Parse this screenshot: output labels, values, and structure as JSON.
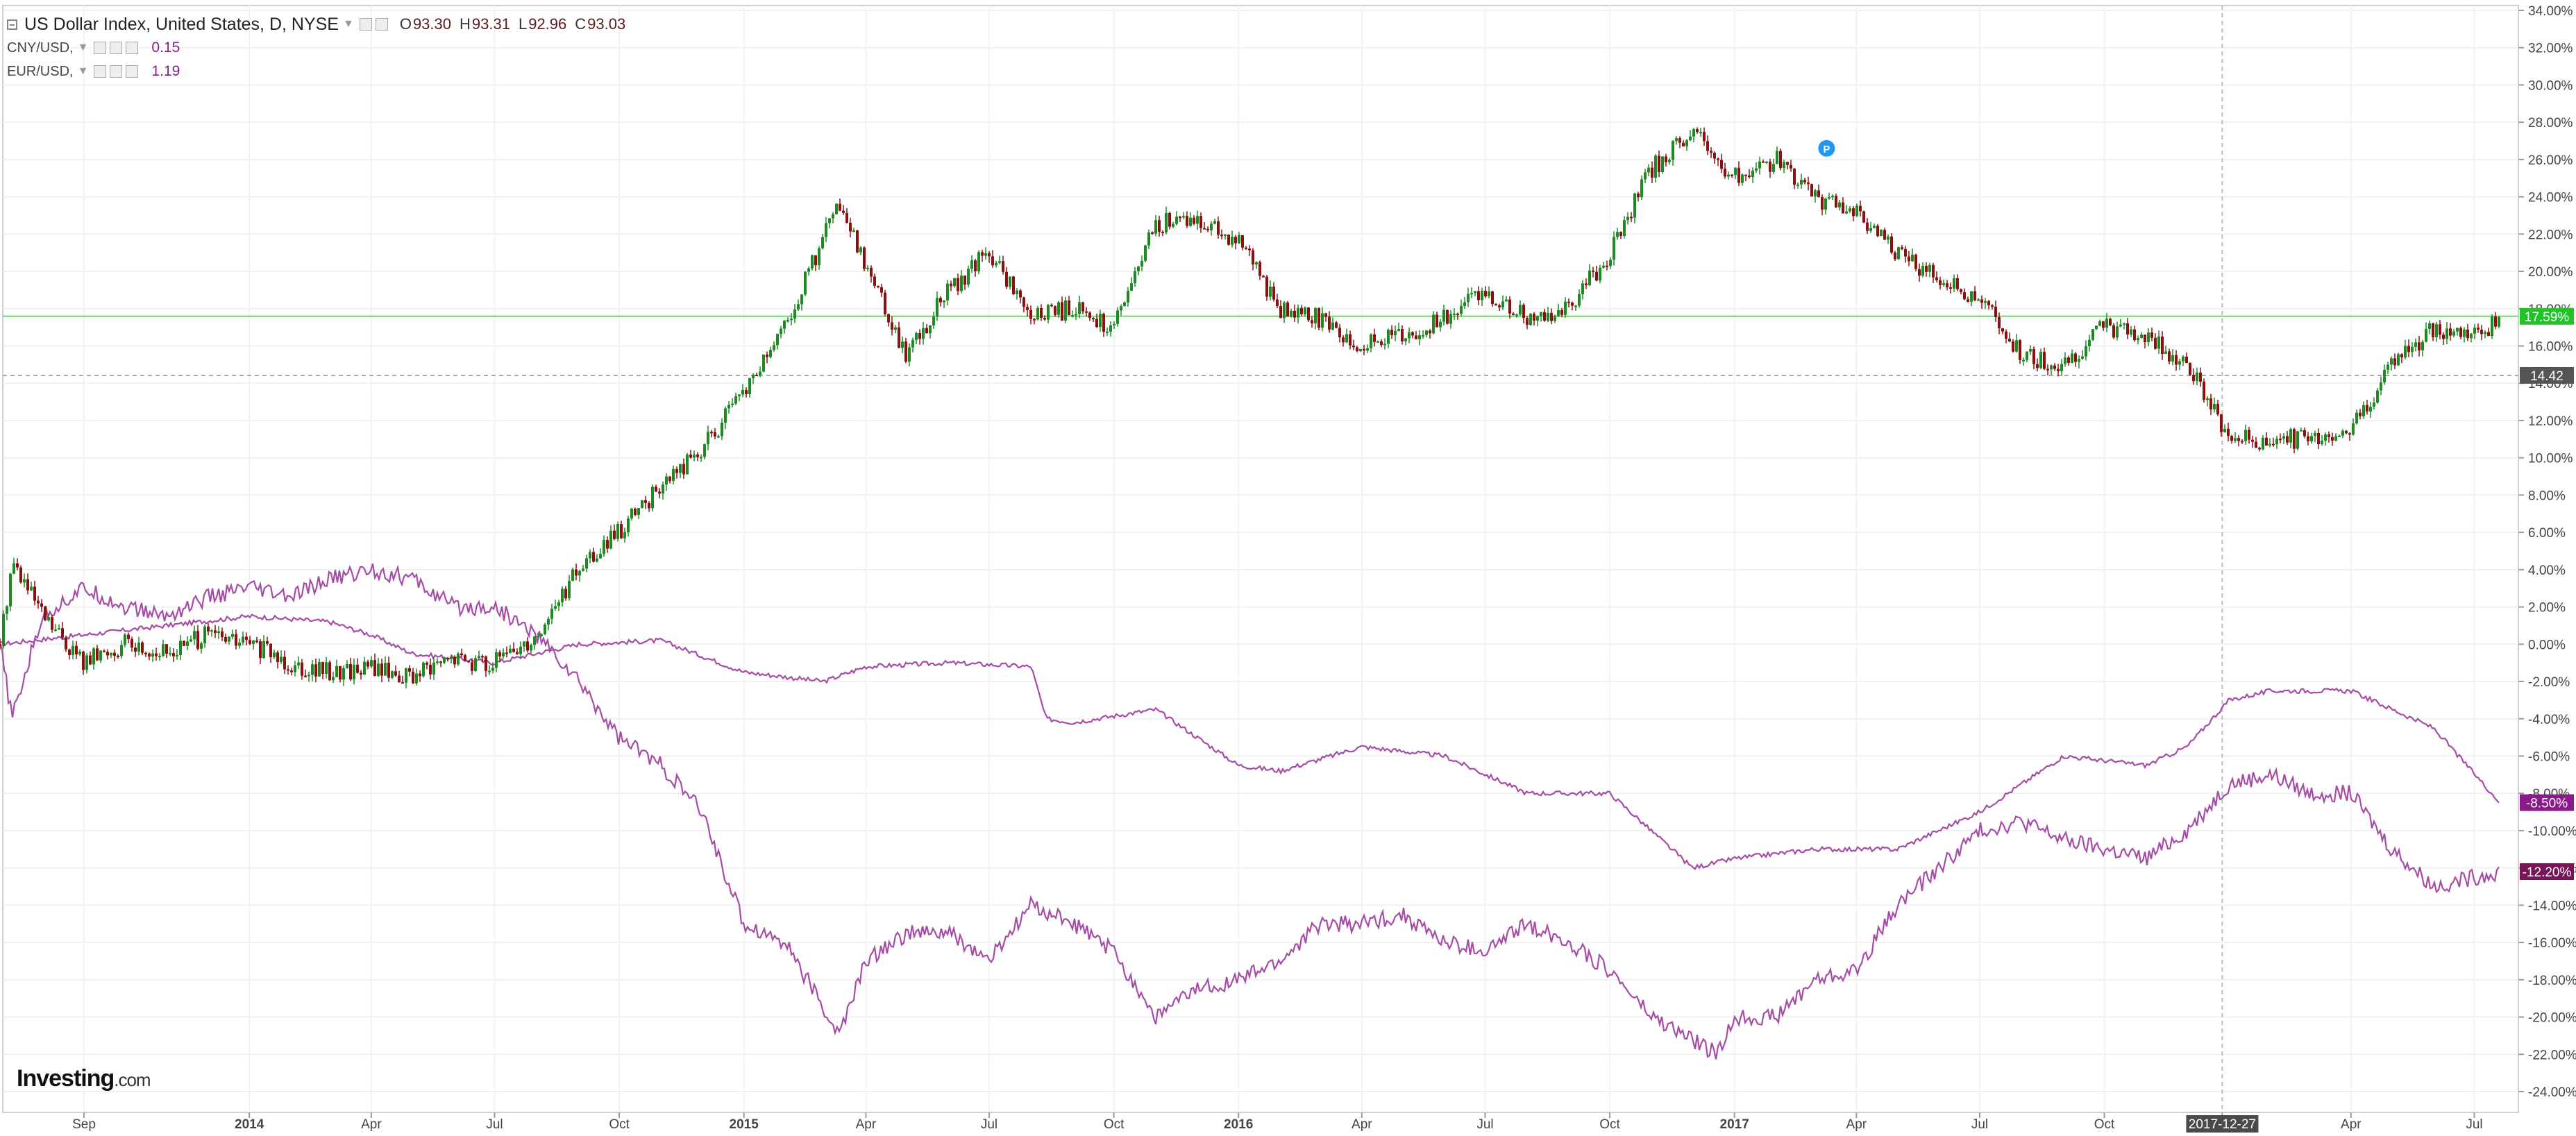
{
  "legend": {
    "main": {
      "title": "US Dollar Index, United States, D, NYSE",
      "o_label": "O",
      "o": "93.30",
      "h_label": "H",
      "h": "93.31",
      "l_label": "L",
      "l": "92.96",
      "c_label": "C",
      "c": "93.03"
    },
    "series": [
      {
        "label": "CNY/USD,",
        "value": "0.15"
      },
      {
        "label": "EUR/USD,",
        "value": "1.19"
      }
    ]
  },
  "logo": {
    "brand": "Investing",
    "suffix": ".com"
  },
  "event_marker": "P",
  "chart_data": {
    "type": "line",
    "title": "US Dollar Index, United States, D, NYSE",
    "x_ticks": [
      "Sep",
      "2014",
      "Apr",
      "Jul",
      "Oct",
      "2015",
      "Apr",
      "Jul",
      "Oct",
      "2016",
      "Apr",
      "Jul",
      "Oct",
      "2017",
      "Apr",
      "Jul",
      "Oct",
      "2017-12-27",
      "Apr",
      "Jul"
    ],
    "x_range": [
      "2013-07-01",
      "2018-08-01"
    ],
    "y_ticks": [
      "34.00%",
      "32.00%",
      "30.00%",
      "28.00%",
      "26.00%",
      "24.00%",
      "22.00%",
      "20.00%",
      "18.00%",
      "16.00%",
      "14.00%",
      "12.00%",
      "10.00%",
      "8.00%",
      "6.00%",
      "4.00%",
      "2.00%",
      "0.00%",
      "-2.00%",
      "-4.00%",
      "-6.00%",
      "-8.00%",
      "-10.00%",
      "-12.00%",
      "-14.00%",
      "-16.00%",
      "-18.00%",
      "-20.00%",
      "-22.00%",
      "-24.00%"
    ],
    "ylim": [
      -25,
      35
    ],
    "y_unit": "percent change",
    "grid": true,
    "legend_position": "top-left",
    "price_labels": [
      {
        "text": "17.59%",
        "value": 17.59,
        "color": "#22c22a"
      },
      {
        "text": "14.42",
        "value": 14.42,
        "color": "#555555"
      },
      {
        "text": "-8.50%",
        "value": -8.5,
        "color": "#8b1a8b"
      },
      {
        "text": "-12.20%",
        "value": -12.2,
        "color": "#7a1458"
      }
    ],
    "crosshair": {
      "x": "2017-12-27",
      "y_label": "14.42"
    },
    "series": [
      {
        "name": "US Dollar Index",
        "style": "candlestick",
        "up_color": "#1e8a22",
        "down_color": "#8b1010",
        "x": [
          "2013-07-01",
          "2013-07-10",
          "2013-08-01",
          "2013-09-01",
          "2013-10-01",
          "2013-11-01",
          "2013-12-01",
          "2014-01-01",
          "2014-02-01",
          "2014-03-01",
          "2014-04-01",
          "2014-05-01",
          "2014-06-01",
          "2014-07-01",
          "2014-08-01",
          "2014-09-01",
          "2014-10-01",
          "2014-11-01",
          "2014-12-01",
          "2015-01-01",
          "2015-02-01",
          "2015-03-10",
          "2015-04-01",
          "2015-05-01",
          "2015-06-01",
          "2015-07-01",
          "2015-08-01",
          "2015-09-01",
          "2015-10-01",
          "2015-11-01",
          "2015-12-01",
          "2016-01-01",
          "2016-02-01",
          "2016-03-01",
          "2016-04-01",
          "2016-05-01",
          "2016-06-01",
          "2016-07-01",
          "2016-08-01",
          "2016-09-01",
          "2016-10-01",
          "2016-11-01",
          "2016-12-01",
          "2017-01-01",
          "2017-02-01",
          "2017-03-01",
          "2017-04-01",
          "2017-05-01",
          "2017-06-01",
          "2017-07-01",
          "2017-08-01",
          "2017-09-01",
          "2017-10-01",
          "2017-11-01",
          "2017-12-01",
          "2018-01-01",
          "2018-02-01",
          "2018-03-01",
          "2018-04-01",
          "2018-05-01",
          "2018-06-01",
          "2018-07-01",
          "2018-07-20"
        ],
        "values": [
          0.0,
          4.5,
          1.5,
          -1.0,
          0.0,
          -0.5,
          0.5,
          0.0,
          -1.0,
          -1.5,
          -1.2,
          -1.8,
          -0.8,
          -1.0,
          0.5,
          4.0,
          6.0,
          8.5,
          10.5,
          13.5,
          17.0,
          23.5,
          20.5,
          15.5,
          19.0,
          21.0,
          17.5,
          18.0,
          17.0,
          22.5,
          23.0,
          21.5,
          18.0,
          17.5,
          16.0,
          16.5,
          17.5,
          19.0,
          17.5,
          18.0,
          21.0,
          25.5,
          27.5,
          25.0,
          26.0,
          24.0,
          23.0,
          21.0,
          19.5,
          18.5,
          15.5,
          15.0,
          17.0,
          16.5,
          15.0,
          11.0,
          11.0,
          11.0,
          11.5,
          15.0,
          17.0,
          16.5,
          17.5
        ]
      },
      {
        "name": "CNY/USD",
        "style": "line",
        "color": "#a64ca6",
        "x": [
          "2013-07-01",
          "2013-09-01",
          "2013-11-01",
          "2014-01-01",
          "2014-03-01",
          "2014-04-01",
          "2014-05-01",
          "2014-07-01",
          "2014-09-01",
          "2014-11-01",
          "2015-01-01",
          "2015-03-01",
          "2015-04-01",
          "2015-06-01",
          "2015-08-01",
          "2015-08-12",
          "2015-09-01",
          "2015-11-01",
          "2016-01-01",
          "2016-02-01",
          "2016-04-01",
          "2016-06-01",
          "2016-08-01",
          "2016-10-01",
          "2016-12-01",
          "2017-01-01",
          "2017-03-01",
          "2017-05-01",
          "2017-07-01",
          "2017-09-01",
          "2017-11-01",
          "2017-12-01",
          "2018-01-01",
          "2018-02-01",
          "2018-04-01",
          "2018-06-01",
          "2018-07-20"
        ],
        "values": [
          0.0,
          0.5,
          1.0,
          1.5,
          1.2,
          0.5,
          -0.5,
          -1.0,
          0.0,
          0.2,
          -1.5,
          -2.0,
          -1.2,
          -1.0,
          -1.2,
          -4.0,
          -4.2,
          -3.5,
          -6.5,
          -6.8,
          -5.5,
          -6.0,
          -8.0,
          -8.0,
          -12.0,
          -11.5,
          -11.0,
          -11.0,
          -9.0,
          -6.0,
          -6.5,
          -5.5,
          -3.0,
          -2.5,
          -2.5,
          -4.5,
          -8.5
        ]
      },
      {
        "name": "EUR/USD",
        "style": "line",
        "color": "#a64ca6",
        "x": [
          "2013-07-01",
          "2013-07-10",
          "2013-08-01",
          "2013-09-01",
          "2013-10-01",
          "2013-11-01",
          "2013-12-01",
          "2014-01-01",
          "2014-02-01",
          "2014-03-01",
          "2014-04-01",
          "2014-05-01",
          "2014-06-01",
          "2014-07-01",
          "2014-08-01",
          "2014-09-01",
          "2014-10-01",
          "2014-11-01",
          "2014-12-01",
          "2015-01-01",
          "2015-02-01",
          "2015-03-12",
          "2015-04-01",
          "2015-05-01",
          "2015-06-01",
          "2015-07-01",
          "2015-08-01",
          "2015-09-01",
          "2015-10-01",
          "2015-11-01",
          "2015-12-01",
          "2016-01-01",
          "2016-02-01",
          "2016-03-01",
          "2016-04-01",
          "2016-05-01",
          "2016-06-01",
          "2016-07-01",
          "2016-08-01",
          "2016-09-01",
          "2016-10-01",
          "2016-11-01",
          "2016-12-20",
          "2017-01-01",
          "2017-02-01",
          "2017-03-01",
          "2017-04-01",
          "2017-05-01",
          "2017-06-01",
          "2017-07-01",
          "2017-08-01",
          "2017-09-01",
          "2017-10-01",
          "2017-11-01",
          "2017-12-01",
          "2018-01-01",
          "2018-02-01",
          "2018-03-01",
          "2018-04-01",
          "2018-05-01",
          "2018-06-01",
          "2018-07-01",
          "2018-07-20"
        ],
        "values": [
          0.0,
          -4.0,
          1.5,
          3.0,
          2.0,
          1.5,
          2.5,
          3.0,
          2.5,
          3.5,
          4.0,
          3.5,
          2.0,
          2.0,
          0.5,
          -2.0,
          -5.0,
          -6.5,
          -9.0,
          -15.0,
          -16.0,
          -21.0,
          -17.0,
          -15.5,
          -15.5,
          -17.0,
          -14.0,
          -15.0,
          -16.5,
          -20.0,
          -18.5,
          -18.0,
          -17.0,
          -15.0,
          -15.0,
          -14.5,
          -16.0,
          -16.5,
          -15.0,
          -16.0,
          -17.5,
          -20.0,
          -22.0,
          -20.0,
          -20.0,
          -18.0,
          -17.5,
          -14.0,
          -12.0,
          -10.0,
          -9.5,
          -10.5,
          -11.0,
          -11.5,
          -10.0,
          -7.5,
          -7.0,
          -8.0,
          -8.0,
          -11.0,
          -13.0,
          -12.5,
          -12.2
        ]
      }
    ]
  }
}
